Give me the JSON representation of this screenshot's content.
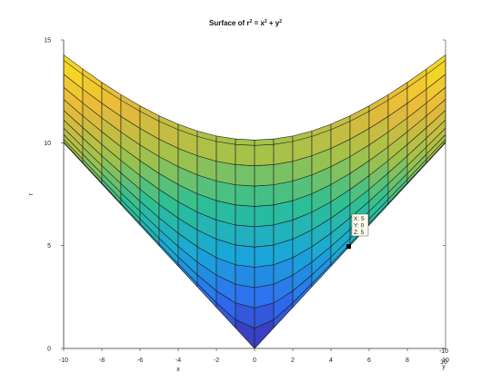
{
  "chart_data": {
    "type": "surface",
    "title": {
      "prefix": "Surface of r",
      "sup1": "2",
      "mid": " = x",
      "sup2": "2",
      "plus": " + y",
      "sup3": "2"
    },
    "xlabel": "x",
    "ylabel": "r",
    "depth_label": "y",
    "x_range": [
      -10,
      10
    ],
    "y_range": [
      -10,
      10
    ],
    "z_range": [
      0,
      15
    ],
    "x_ticks": [
      -10,
      -8,
      -6,
      -4,
      -2,
      0,
      2,
      4,
      6,
      8,
      10
    ],
    "z_ticks": [
      0,
      5,
      10,
      15
    ],
    "depth_ticks": [
      -10,
      10
    ],
    "grid_x": [
      -10,
      -9,
      -8,
      -7,
      -6,
      -5,
      -4,
      -3,
      -2,
      -1,
      0,
      1,
      2,
      3,
      4,
      5,
      6,
      7,
      8,
      9,
      10
    ],
    "grid_y": [
      -10,
      -9,
      -8,
      -7,
      -6,
      -5,
      -4,
      -3,
      -2,
      -1,
      0,
      1,
      2,
      3,
      4,
      5,
      6,
      7,
      8,
      9,
      10
    ],
    "function": "r = sqrt(x^2 + y^2)",
    "colormap": [
      "#3e26a8",
      "#2f6df0",
      "#1aa8d8",
      "#2dbf95",
      "#a2c24a",
      "#e8b93b",
      "#f9e11e"
    ],
    "datatip": {
      "x_label": "X: 5",
      "y_label": "Y: 0",
      "z_label": "Z: 5",
      "x": 5,
      "y": 0,
      "z": 5
    }
  }
}
